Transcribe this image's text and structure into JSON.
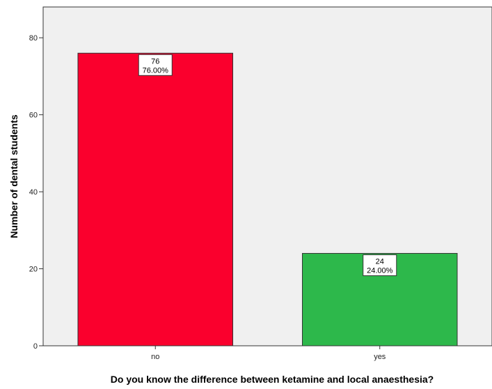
{
  "chart_data": {
    "type": "bar",
    "title": "",
    "xlabel": "Do you know the difference between ketamine and local anaesthesia?",
    "ylabel": "Number of dental students",
    "categories": [
      "no",
      "yes"
    ],
    "values": [
      76,
      24
    ],
    "data_labels": [
      {
        "count": "76",
        "percent": "76.00%"
      },
      {
        "count": "24",
        "percent": "24.00%"
      }
    ],
    "bar_colors": [
      "#fa002d",
      "#2db84b"
    ],
    "ylim": [
      0,
      88
    ],
    "yticks": [
      0,
      20,
      40,
      60,
      80
    ],
    "grid": false,
    "legend": "none",
    "plot_background": "#f0f0f0"
  }
}
